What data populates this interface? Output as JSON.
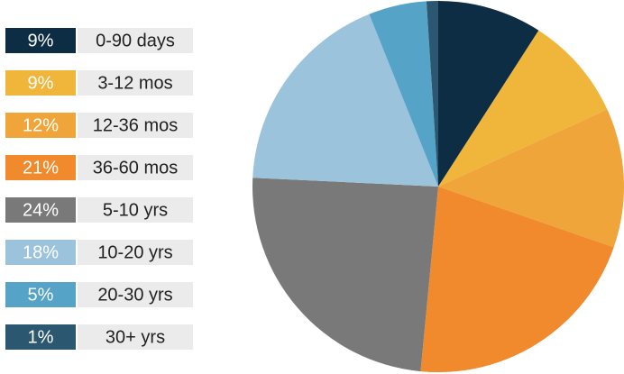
{
  "chart_data": {
    "type": "pie",
    "categories": [
      "0-90 days",
      "3-12 mos",
      "12-36 mos",
      "36-60 mos",
      "5-10 yrs",
      "10-20 yrs",
      "20-30 yrs",
      "30+ yrs"
    ],
    "values": [
      9,
      9,
      12,
      21,
      24,
      18,
      5,
      1
    ],
    "value_labels": [
      "9%",
      "9%",
      "12%",
      "21%",
      "24%",
      "18%",
      "5%",
      "1%"
    ],
    "colors": [
      "#0d2d45",
      "#f0b63c",
      "#f0a53a",
      "#f08a2c",
      "#797979",
      "#9cc3dc",
      "#55a3c6",
      "#2b5870"
    ]
  }
}
